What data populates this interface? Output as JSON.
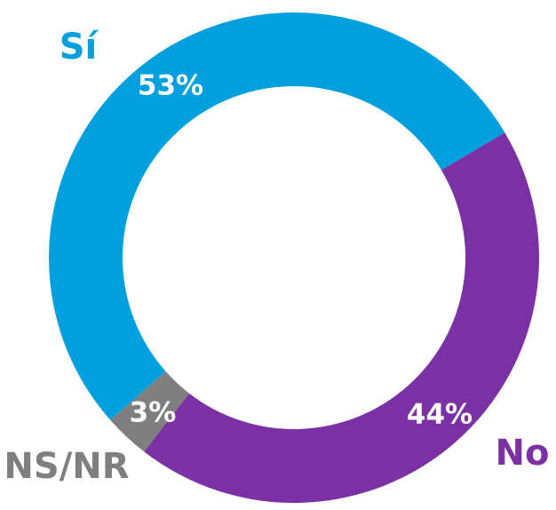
{
  "chart_data": {
    "type": "donut",
    "categories": [
      "Sí",
      "No",
      "NS/NR"
    ],
    "values": [
      53,
      44,
      3
    ],
    "value_labels": [
      "53%",
      "44%",
      "3%"
    ],
    "colors": [
      "#00a0df",
      "#7b30a4",
      "#7f7f7f"
    ]
  }
}
